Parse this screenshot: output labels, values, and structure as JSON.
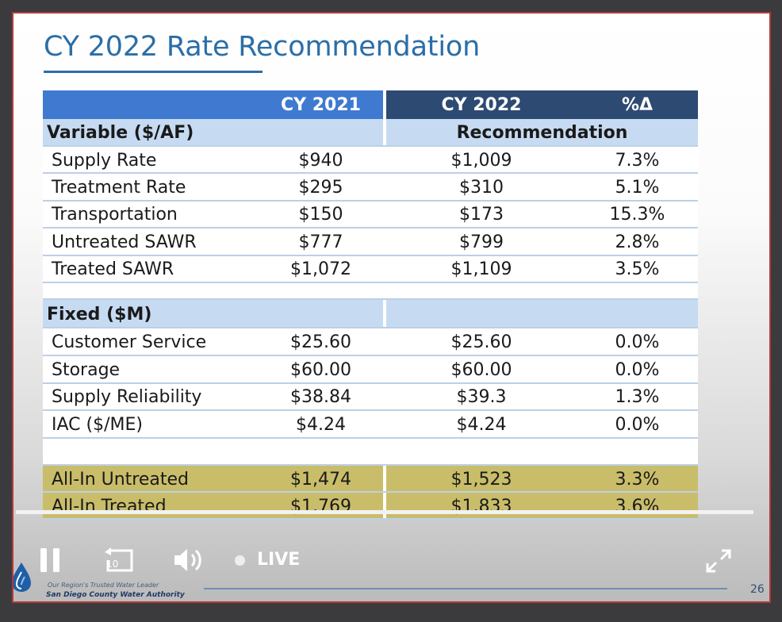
{
  "slide": {
    "title": "CY 2022 Rate Recommendation",
    "page_number": "26",
    "org_tagline": "Our Region's Trusted Water Leader",
    "org_name": "San Diego County Water Authority"
  },
  "table": {
    "header": {
      "cy2021": "CY 2021",
      "cy2022": "CY 2022",
      "pct": "%Δ"
    },
    "variable_section": {
      "label": "Variable ($/AF)",
      "right_label": "Recommendation"
    },
    "variable_rows": [
      {
        "label": "Supply Rate",
        "cy2021": "$940",
        "cy2022": "$1,009",
        "pct": "7.3%"
      },
      {
        "label": "Treatment Rate",
        "cy2021": "$295",
        "cy2022": "$310",
        "pct": "5.1%"
      },
      {
        "label": "Transportation",
        "cy2021": "$150",
        "cy2022": "$173",
        "pct": "15.3%"
      },
      {
        "label": "Untreated SAWR",
        "cy2021": "$777",
        "cy2022": "$799",
        "pct": "2.8%"
      },
      {
        "label": "Treated SAWR",
        "cy2021": "$1,072",
        "cy2022": "$1,109",
        "pct": "3.5%"
      }
    ],
    "fixed_section": {
      "label": "Fixed ($M)"
    },
    "fixed_rows": [
      {
        "label": "Customer Service",
        "cy2021": "$25.60",
        "cy2022": "$25.60",
        "pct": "0.0%"
      },
      {
        "label": "Storage",
        "cy2021": "$60.00",
        "cy2022": "$60.00",
        "pct": "0.0%"
      },
      {
        "label": "Supply Reliability",
        "cy2021": "$38.84",
        "cy2022": "$39.3",
        "pct": "1.3%"
      },
      {
        "label": "IAC ($/ME)",
        "cy2021": "$4.24",
        "cy2022": "$4.24",
        "pct": "0.0%"
      }
    ],
    "allin_rows": [
      {
        "label": "All-In Untreated",
        "cy2021": "$1,474",
        "cy2022": "$1,523",
        "pct": "3.3%"
      },
      {
        "label": "All-In Treated",
        "cy2021": "$1,769",
        "cy2022": "$1,833",
        "pct": "3.6%"
      }
    ]
  },
  "player": {
    "live_label": "LIVE",
    "rewind_seconds": "10",
    "icons": {
      "pause": "pause-icon",
      "rewind": "rewind-10-icon",
      "volume": "volume-icon",
      "fullscreen": "fullscreen-icon"
    }
  },
  "colors": {
    "header_blue": "#3f7ad0",
    "header_dark": "#2d4a73",
    "section_blue": "#c6dbf2",
    "row_white": "#ffffff",
    "allin_gold": "#c9bd6a",
    "title_blue": "#2b6ea7"
  }
}
